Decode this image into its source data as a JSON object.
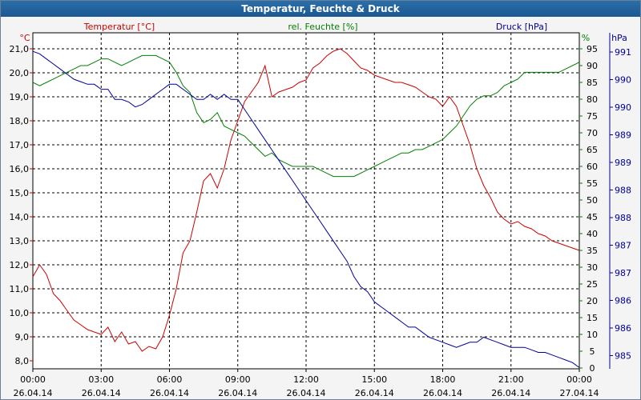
{
  "window": {
    "title": "Temperatur, Feuchte & Druck"
  },
  "chart_data": {
    "type": "line",
    "title": "Temperatur, Feuchte & Druck",
    "xlabel": "",
    "grid": true,
    "x_ticks": [
      {
        "time": "00:00",
        "date": "26.04.14",
        "hour": 0
      },
      {
        "time": "03:00",
        "date": "26.04.14",
        "hour": 3
      },
      {
        "time": "06:00",
        "date": "26.04.14",
        "hour": 6
      },
      {
        "time": "09:00",
        "date": "26.04.14",
        "hour": 9
      },
      {
        "time": "12:00",
        "date": "26.04.14",
        "hour": 12
      },
      {
        "time": "15:00",
        "date": "26.04.14",
        "hour": 15
      },
      {
        "time": "18:00",
        "date": "26.04.14",
        "hour": 18
      },
      {
        "time": "21:00",
        "date": "26.04.14",
        "hour": 21
      },
      {
        "time": "00:00",
        "date": "27.04.14",
        "hour": 24
      }
    ],
    "xlim": [
      0,
      24
    ],
    "axes": {
      "temperature": {
        "unit": "°C",
        "label": "Temperatur [°C]",
        "color": "#cc0000",
        "range": [
          8.0,
          21.0
        ],
        "ticks": [
          "21,0",
          "20,0",
          "19,0",
          "18,0",
          "17,0",
          "16,0",
          "15,0",
          "14,0",
          "13,0",
          "12,0",
          "11,0",
          "10,0",
          "9,0",
          "8,0"
        ]
      },
      "humidity": {
        "unit": "%",
        "label": "rel. Feuchte [%]",
        "color": "#008000",
        "range": [
          0,
          95
        ],
        "ticks": [
          "95",
          "90",
          "85",
          "80",
          "75",
          "70",
          "65",
          "60",
          "55",
          "50",
          "45",
          "40",
          "35",
          "30",
          "25",
          "20",
          "15",
          "10",
          "5",
          "0"
        ]
      },
      "pressure": {
        "unit": "hPa",
        "label": "Druck [hPa]",
        "color": "#000099",
        "range": [
          985,
          991
        ],
        "ticks": [
          "991",
          "990",
          "990",
          "989",
          "989",
          "988",
          "988",
          "987",
          "987",
          "986",
          "986",
          "985"
        ]
      }
    },
    "series": [
      {
        "name": "Temperatur [°C]",
        "axis": "temperature",
        "color": "#cc0000",
        "x": [
          0,
          0.3,
          0.6,
          0.9,
          1.2,
          1.5,
          1.8,
          2.1,
          2.4,
          2.7,
          3.0,
          3.3,
          3.6,
          3.9,
          4.2,
          4.5,
          4.8,
          5.1,
          5.4,
          5.7,
          6.0,
          6.3,
          6.6,
          6.9,
          7.2,
          7.5,
          7.8,
          8.1,
          8.4,
          8.7,
          9.0,
          9.3,
          9.6,
          9.9,
          10.2,
          10.5,
          10.8,
          11.1,
          11.4,
          11.7,
          12.0,
          12.3,
          12.6,
          12.9,
          13.2,
          13.5,
          13.8,
          14.1,
          14.4,
          14.7,
          15.0,
          15.3,
          15.6,
          15.9,
          16.2,
          16.5,
          16.8,
          17.1,
          17.4,
          17.7,
          18.0,
          18.3,
          18.6,
          18.9,
          19.2,
          19.5,
          19.8,
          20.1,
          20.4,
          20.7,
          21.0,
          21.3,
          21.6,
          21.9,
          22.2,
          22.5,
          22.8,
          23.1,
          23.4,
          23.7,
          24.0
        ],
        "values": [
          11.5,
          12.0,
          11.6,
          10.8,
          10.5,
          10.1,
          9.7,
          9.5,
          9.3,
          9.2,
          9.1,
          9.4,
          8.8,
          9.2,
          8.7,
          8.8,
          8.4,
          8.6,
          8.5,
          9.0,
          9.9,
          11.0,
          12.5,
          13.0,
          14.2,
          15.5,
          15.8,
          15.2,
          16.0,
          17.2,
          18.0,
          18.8,
          19.2,
          19.6,
          20.3,
          19.0,
          19.2,
          19.3,
          19.4,
          19.6,
          19.7,
          20.2,
          20.4,
          20.7,
          20.9,
          21.0,
          20.8,
          20.5,
          20.2,
          20.1,
          19.9,
          19.8,
          19.7,
          19.6,
          19.6,
          19.5,
          19.4,
          19.2,
          19.0,
          18.9,
          18.6,
          19.0,
          18.6,
          17.8,
          17.0,
          16.0,
          15.3,
          14.8,
          14.2,
          13.9,
          13.7,
          13.8,
          13.6,
          13.5,
          13.3,
          13.2,
          13.0,
          12.9,
          12.8,
          12.7,
          12.6
        ]
      },
      {
        "name": "rel. Feuchte [%]",
        "axis": "humidity",
        "color": "#008000",
        "x": [
          0,
          0.3,
          0.6,
          0.9,
          1.2,
          1.5,
          1.8,
          2.1,
          2.4,
          2.7,
          3.0,
          3.3,
          3.6,
          3.9,
          4.2,
          4.5,
          4.8,
          5.1,
          5.4,
          5.7,
          6.0,
          6.3,
          6.6,
          6.9,
          7.2,
          7.5,
          7.8,
          8.1,
          8.4,
          8.7,
          9.0,
          9.3,
          9.6,
          9.9,
          10.2,
          10.5,
          10.8,
          11.1,
          11.4,
          11.7,
          12.0,
          12.3,
          12.6,
          12.9,
          13.2,
          13.5,
          13.8,
          14.1,
          14.4,
          14.7,
          15.0,
          15.3,
          15.6,
          15.9,
          16.2,
          16.5,
          16.8,
          17.1,
          17.4,
          17.7,
          18.0,
          18.3,
          18.6,
          18.9,
          19.2,
          19.5,
          19.8,
          20.1,
          20.4,
          20.7,
          21.0,
          21.3,
          21.6,
          21.9,
          22.2,
          22.5,
          22.8,
          23.1,
          23.4,
          23.7,
          24.0
        ],
        "values": [
          85,
          84,
          85,
          86,
          87,
          88,
          89,
          90,
          90,
          91,
          92,
          92,
          91,
          90,
          91,
          92,
          93,
          93,
          93,
          92,
          91,
          88,
          84,
          82,
          76,
          73,
          74,
          76,
          72,
          71,
          70,
          69,
          67,
          65,
          63,
          64,
          62,
          61,
          60,
          60,
          60,
          60,
          59,
          58,
          57,
          57,
          57,
          57,
          58,
          59,
          60,
          61,
          62,
          63,
          64,
          64,
          65,
          65,
          66,
          67,
          68,
          70,
          72,
          75,
          78,
          80,
          81,
          81,
          82,
          84,
          85,
          86,
          88,
          88,
          88,
          88,
          88,
          88,
          89,
          90,
          91
        ]
      },
      {
        "name": "Druck [hPa]",
        "axis": "pressure",
        "color": "#000099",
        "x": [
          0,
          0.3,
          0.6,
          0.9,
          1.2,
          1.5,
          1.8,
          2.1,
          2.4,
          2.7,
          3.0,
          3.3,
          3.6,
          3.9,
          4.2,
          4.5,
          4.8,
          5.1,
          5.4,
          5.7,
          6.0,
          6.3,
          6.6,
          6.9,
          7.2,
          7.5,
          7.8,
          8.1,
          8.4,
          8.7,
          9.0,
          9.3,
          9.6,
          9.9,
          10.2,
          10.5,
          10.8,
          11.1,
          11.4,
          11.7,
          12.0,
          12.3,
          12.6,
          12.9,
          13.2,
          13.5,
          13.8,
          14.1,
          14.4,
          14.7,
          15.0,
          15.3,
          15.6,
          15.9,
          16.2,
          16.5,
          16.8,
          17.1,
          17.4,
          17.7,
          18.0,
          18.3,
          18.6,
          18.9,
          19.2,
          19.5,
          19.8,
          20.1,
          20.4,
          20.7,
          21.0,
          21.3,
          21.6,
          21.9,
          22.2,
          22.5,
          22.8,
          23.1,
          23.4,
          23.7,
          24.0
        ],
        "values": [
          990.95,
          990.9,
          990.8,
          990.7,
          990.6,
          990.5,
          990.4,
          990.35,
          990.3,
          990.3,
          990.2,
          990.2,
          990.0,
          990.0,
          989.95,
          989.85,
          989.9,
          990.0,
          990.1,
          990.2,
          990.3,
          990.3,
          990.2,
          990.1,
          990.0,
          990.0,
          990.1,
          990.0,
          990.1,
          990.0,
          990.0,
          989.8,
          989.6,
          989.4,
          989.2,
          989.0,
          988.8,
          988.6,
          988.4,
          988.2,
          988.0,
          987.8,
          987.6,
          987.4,
          987.2,
          987.0,
          986.8,
          986.5,
          986.3,
          986.2,
          986.0,
          985.9,
          985.8,
          985.7,
          985.6,
          985.5,
          985.5,
          985.4,
          985.3,
          985.25,
          985.2,
          985.15,
          985.1,
          985.15,
          985.2,
          985.2,
          985.3,
          985.25,
          985.2,
          985.15,
          985.1,
          985.1,
          985.1,
          985.05,
          985.0,
          985.0,
          984.95,
          984.9,
          984.85,
          984.8,
          984.7
        ]
      }
    ]
  }
}
